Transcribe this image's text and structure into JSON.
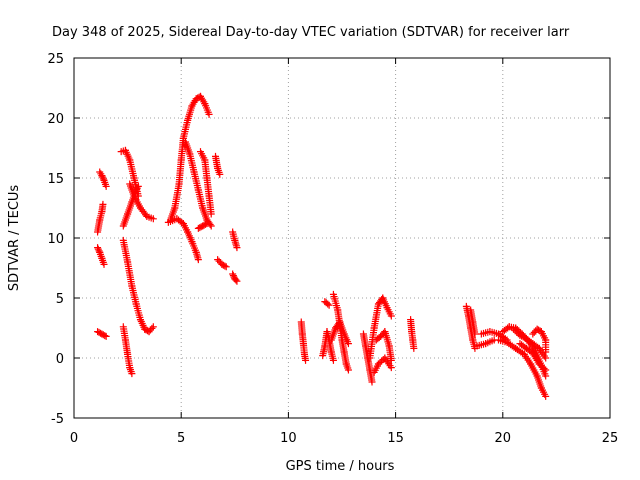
{
  "chart_data": {
    "type": "scatter",
    "title": "Day 348 of 2025, Sidereal Day-to-day VTEC variation (SDTVAR) for receiver larr",
    "xlabel": "GPS time / hours",
    "ylabel": "SDTVAR / TECUs",
    "xlim": [
      0,
      25
    ],
    "ylim": [
      -5,
      25
    ],
    "xticks": [
      "0",
      "5",
      "10",
      "15",
      "20",
      "25"
    ],
    "yticks": [
      "-5",
      "0",
      "5",
      "10",
      "15",
      "20",
      "25"
    ],
    "grid": true,
    "marker": "+",
    "color": "#ff0000",
    "segments": [
      [
        [
          1.2,
          15.5
        ],
        [
          1.3,
          15.2
        ],
        [
          1.4,
          14.8
        ],
        [
          1.5,
          14.3
        ]
      ],
      [
        [
          1.1,
          10.5
        ],
        [
          1.2,
          11.5
        ],
        [
          1.3,
          12.2
        ],
        [
          1.35,
          12.8
        ]
      ],
      [
        [
          1.1,
          9.2
        ],
        [
          1.2,
          8.8
        ],
        [
          1.3,
          8.3
        ],
        [
          1.4,
          7.8
        ]
      ],
      [
        [
          1.1,
          2.2
        ],
        [
          1.3,
          2.0
        ],
        [
          1.5,
          1.8
        ]
      ],
      [
        [
          2.2,
          17.2
        ],
        [
          2.4,
          17.3
        ],
        [
          2.6,
          16.5
        ],
        [
          2.8,
          15.0
        ],
        [
          3.0,
          13.5
        ]
      ],
      [
        [
          2.3,
          11.0
        ],
        [
          2.5,
          12.0
        ],
        [
          2.7,
          13.0
        ],
        [
          2.9,
          14.0
        ],
        [
          3.0,
          14.3
        ]
      ],
      [
        [
          2.6,
          14.5
        ],
        [
          2.8,
          13.5
        ],
        [
          3.1,
          12.5
        ],
        [
          3.4,
          11.8
        ],
        [
          3.7,
          11.6
        ]
      ],
      [
        [
          2.3,
          9.8
        ],
        [
          2.5,
          8.0
        ],
        [
          2.7,
          6.0
        ],
        [
          2.9,
          4.5
        ],
        [
          3.1,
          3.2
        ],
        [
          3.3,
          2.4
        ],
        [
          3.5,
          2.2
        ],
        [
          3.7,
          2.6
        ]
      ],
      [
        [
          2.3,
          2.6
        ],
        [
          2.4,
          1.5
        ],
        [
          2.5,
          0.3
        ],
        [
          2.6,
          -0.8
        ],
        [
          2.7,
          -1.3
        ]
      ],
      [
        [
          4.5,
          11.5
        ],
        [
          4.7,
          12.5
        ],
        [
          4.9,
          14.5
        ],
        [
          5.0,
          16.5
        ],
        [
          5.1,
          18.3
        ],
        [
          5.3,
          19.8
        ],
        [
          5.5,
          21.0
        ],
        [
          5.7,
          21.6
        ],
        [
          5.9,
          21.8
        ],
        [
          6.1,
          21.2
        ],
        [
          6.3,
          20.3
        ]
      ],
      [
        [
          4.4,
          11.3
        ],
        [
          4.8,
          11.6
        ],
        [
          5.1,
          11.2
        ],
        [
          5.3,
          10.5
        ],
        [
          5.5,
          9.7
        ],
        [
          5.7,
          8.8
        ],
        [
          5.8,
          8.2
        ]
      ],
      [
        [
          5.2,
          18.0
        ],
        [
          5.4,
          17.0
        ],
        [
          5.6,
          15.5
        ],
        [
          5.8,
          14.0
        ],
        [
          6.0,
          12.5
        ],
        [
          6.2,
          11.5
        ],
        [
          6.4,
          11.0
        ]
      ],
      [
        [
          5.9,
          17.2
        ],
        [
          6.1,
          16.5
        ],
        [
          6.2,
          15.0
        ],
        [
          6.3,
          13.5
        ],
        [
          6.4,
          12.0
        ]
      ],
      [
        [
          5.8,
          10.8
        ],
        [
          6.0,
          11.0
        ],
        [
          6.2,
          11.2
        ]
      ],
      [
        [
          6.6,
          16.8
        ],
        [
          6.7,
          15.8
        ],
        [
          6.8,
          15.3
        ]
      ],
      [
        [
          6.7,
          8.2
        ],
        [
          6.9,
          7.8
        ],
        [
          7.1,
          7.6
        ]
      ],
      [
        [
          7.4,
          10.5
        ],
        [
          7.5,
          9.8
        ],
        [
          7.6,
          9.2
        ]
      ],
      [
        [
          7.4,
          7.0
        ],
        [
          7.5,
          6.6
        ],
        [
          7.6,
          6.4
        ]
      ],
      [
        [
          10.6,
          3.0
        ],
        [
          10.65,
          2.0
        ],
        [
          10.7,
          1.2
        ],
        [
          10.75,
          0.3
        ],
        [
          10.8,
          -0.2
        ]
      ],
      [
        [
          11.6,
          0.2
        ],
        [
          11.7,
          1.0
        ],
        [
          11.8,
          2.2
        ],
        [
          11.9,
          1.5
        ],
        [
          12.0,
          0.5
        ],
        [
          12.1,
          -0.2
        ]
      ],
      [
        [
          11.7,
          4.7
        ],
        [
          11.9,
          4.4
        ]
      ],
      [
        [
          12.1,
          5.3
        ],
        [
          12.3,
          4.0
        ],
        [
          12.4,
          2.8
        ],
        [
          12.5,
          1.5
        ],
        [
          12.6,
          0.5
        ],
        [
          12.7,
          -0.5
        ],
        [
          12.8,
          -1.0
        ]
      ],
      [
        [
          12.0,
          1.5
        ],
        [
          12.2,
          2.5
        ],
        [
          12.4,
          3.0
        ],
        [
          12.6,
          2.0
        ],
        [
          12.8,
          1.2
        ]
      ],
      [
        [
          13.5,
          2.0
        ],
        [
          13.6,
          1.0
        ],
        [
          13.7,
          0.0
        ],
        [
          13.8,
          -1.0
        ],
        [
          13.9,
          -2.0
        ]
      ],
      [
        [
          13.8,
          0.0
        ],
        [
          14.0,
          2.5
        ],
        [
          14.2,
          4.5
        ],
        [
          14.4,
          5.0
        ],
        [
          14.6,
          4.2
        ],
        [
          14.8,
          3.5
        ]
      ],
      [
        [
          14.0,
          -1.2
        ],
        [
          14.2,
          -0.5
        ],
        [
          14.5,
          0.0
        ],
        [
          14.8,
          -0.8
        ]
      ],
      [
        [
          14.1,
          1.5
        ],
        [
          14.3,
          1.8
        ],
        [
          14.5,
          2.2
        ],
        [
          14.7,
          1.0
        ],
        [
          14.8,
          -0.2
        ]
      ],
      [
        [
          15.7,
          3.2
        ],
        [
          15.75,
          2.2
        ],
        [
          15.8,
          1.5
        ],
        [
          15.85,
          0.8
        ]
      ],
      [
        [
          18.3,
          4.3
        ],
        [
          18.4,
          3.5
        ],
        [
          18.5,
          2.5
        ],
        [
          18.6,
          1.5
        ],
        [
          18.7,
          0.8
        ]
      ],
      [
        [
          18.5,
          4.0
        ],
        [
          18.6,
          3.0
        ],
        [
          18.7,
          2.0
        ]
      ],
      [
        [
          19.0,
          2.0
        ],
        [
          19.4,
          2.2
        ],
        [
          19.8,
          2.0
        ],
        [
          20.2,
          1.5
        ]
      ],
      [
        [
          18.8,
          1.0
        ],
        [
          19.2,
          1.2
        ],
        [
          19.6,
          1.5
        ]
      ],
      [
        [
          20.0,
          2.2
        ],
        [
          20.3,
          2.6
        ],
        [
          20.6,
          2.5
        ],
        [
          20.9,
          2.0
        ],
        [
          21.2,
          1.4
        ],
        [
          21.5,
          0.6
        ],
        [
          21.8,
          -0.6
        ],
        [
          22.0,
          -1.5
        ]
      ],
      [
        [
          19.8,
          1.5
        ],
        [
          20.2,
          1.3
        ],
        [
          20.6,
          0.8
        ],
        [
          21.0,
          0.3
        ],
        [
          21.3,
          -0.5
        ],
        [
          21.6,
          -1.5
        ],
        [
          21.8,
          -2.5
        ],
        [
          22.0,
          -3.2
        ]
      ],
      [
        [
          20.8,
          1.2
        ],
        [
          21.1,
          0.8
        ],
        [
          21.4,
          0.4
        ],
        [
          21.7,
          -0.5
        ],
        [
          22.0,
          -1.0
        ]
      ],
      [
        [
          21.4,
          2.0
        ],
        [
          21.6,
          2.4
        ],
        [
          21.8,
          2.2
        ],
        [
          22.0,
          1.5
        ],
        [
          22.0,
          0.5
        ]
      ],
      [
        [
          20.5,
          2.4
        ],
        [
          20.8,
          1.9
        ],
        [
          21.1,
          1.6
        ],
        [
          21.4,
          1.2
        ],
        [
          21.7,
          0.8
        ],
        [
          22.0,
          0.0
        ]
      ]
    ]
  }
}
